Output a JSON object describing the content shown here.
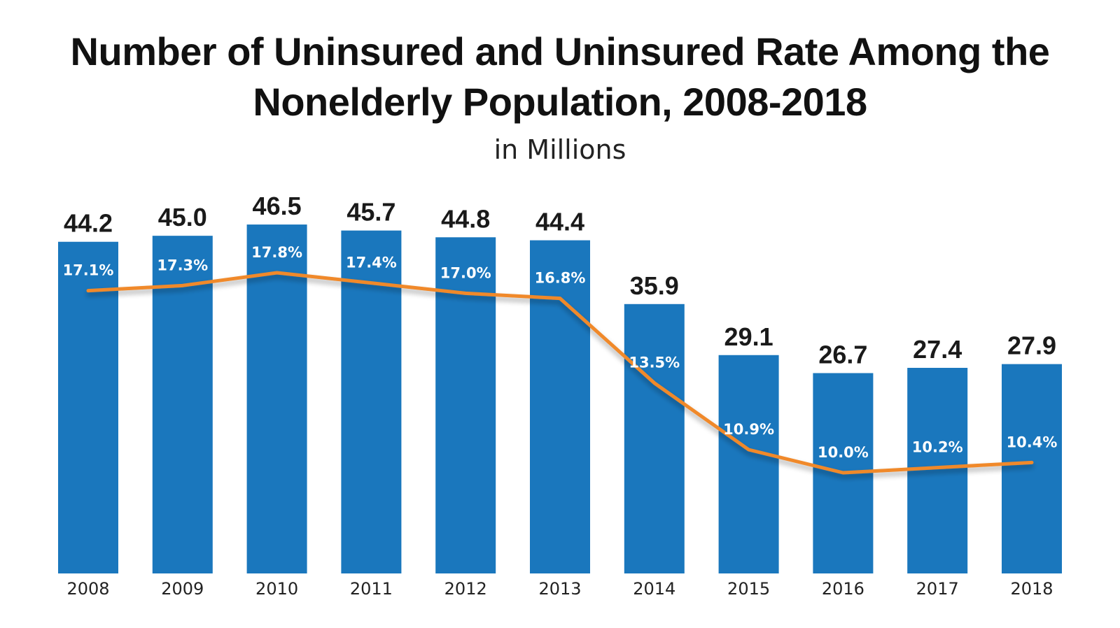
{
  "chart_data": {
    "type": "bar",
    "title": "Number of Uninsured and Uninsured Rate Among the Nonelderly Population, 2008-2018",
    "title_line1": "Number of Uninsured and Uninsured Rate Among the",
    "title_line2": "Nonelderly Population, 2008-2018",
    "subtitle": "in Millions",
    "categories": [
      "2008",
      "2009",
      "2010",
      "2011",
      "2012",
      "2013",
      "2014",
      "2015",
      "2016",
      "2017",
      "2018"
    ],
    "series": [
      {
        "name": "Number of Uninsured (millions)",
        "type": "bar",
        "values": [
          44.2,
          45.0,
          46.5,
          45.7,
          44.8,
          44.4,
          35.9,
          29.1,
          26.7,
          27.4,
          27.9
        ],
        "labels": [
          "44.2",
          "45.0",
          "46.5",
          "45.7",
          "44.8",
          "44.4",
          "35.9",
          "29.1",
          "26.7",
          "27.4",
          "27.9"
        ],
        "color": "#1a77bd"
      },
      {
        "name": "Uninsured Rate (%)",
        "type": "line",
        "values": [
          17.1,
          17.3,
          17.8,
          17.4,
          17.0,
          16.8,
          13.5,
          10.9,
          10.0,
          10.2,
          10.4
        ],
        "labels": [
          "17.1%",
          "17.3%",
          "17.8%",
          "17.4%",
          "17.0%",
          "16.8%",
          "13.5%",
          "10.9%",
          "10.0%",
          "10.2%",
          "10.4%"
        ],
        "color": "#f0892a"
      }
    ],
    "ylim": [
      0,
      48
    ],
    "rate_axis_range": [
      0,
      30
    ],
    "grid": false,
    "legend": "none"
  }
}
